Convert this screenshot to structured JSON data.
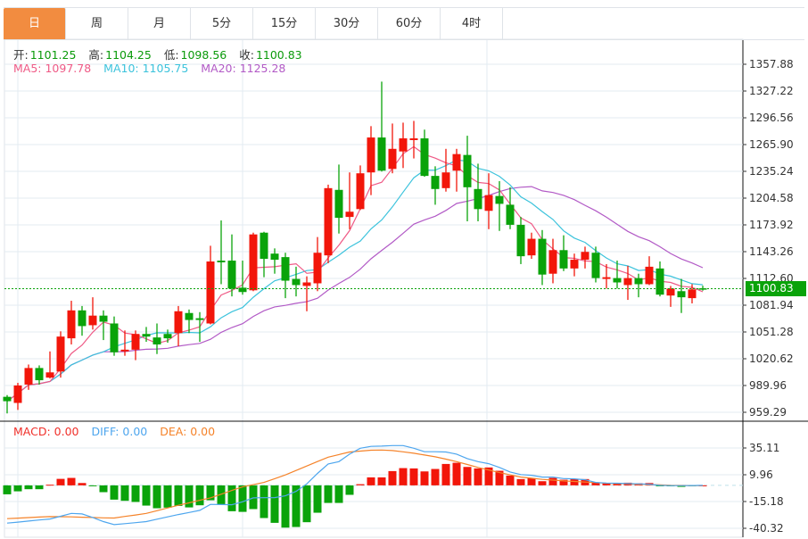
{
  "tabs": [
    {
      "label": "日",
      "active": true
    },
    {
      "label": "周"
    },
    {
      "label": "月"
    },
    {
      "label": "5分"
    },
    {
      "label": "15分"
    },
    {
      "label": "30分"
    },
    {
      "label": "60分"
    },
    {
      "label": "4时"
    }
  ],
  "ohlc_info": {
    "open_label": "开:",
    "open": "1101.25",
    "high_label": "高:",
    "high": "1104.25",
    "low_label": "低:",
    "low": "1098.56",
    "close_label": "收:",
    "close": "1100.83"
  },
  "ma_info": {
    "ma5": "MA5: 1097.78",
    "ma10": "MA10: 1105.75",
    "ma20": "MA20: 1125.28"
  },
  "macd_info": {
    "macd": "MACD: 0.00",
    "diff": "DIFF: 0.00",
    "dea": "DEA: 0.00"
  },
  "current_price": "1100.83",
  "colors": {
    "up": "#f2160a",
    "down": "#0aa30a",
    "ma5": "#ef5a86",
    "ma10": "#3cc3dc",
    "ma20": "#b25ac6",
    "diff": "#4ea6ee",
    "dea": "#f5832a",
    "tab_active": "#f28c40"
  },
  "chart_data": [
    {
      "type": "candlestick",
      "title": "",
      "ylim": [
        959.29,
        1357.88
      ],
      "y_ticks": [
        "1357.88",
        "1327.22",
        "1296.56",
        "1265.90",
        "1235.24",
        "1204.58",
        "1173.92",
        "1143.26",
        "1112.60",
        "1081.94",
        "1051.28",
        "1020.62",
        "989.96",
        "959.29"
      ],
      "ohlc": [
        [
          977,
          979,
          958,
          972
        ],
        [
          970,
          993,
          962,
          990
        ],
        [
          991,
          1014,
          985,
          1010
        ],
        [
          1010,
          1013,
          991,
          996
        ],
        [
          999,
          1029,
          998,
          1005
        ],
        [
          1006,
          1052,
          999,
          1046
        ],
        [
          1044,
          1087,
          1037,
          1076
        ],
        [
          1076,
          1081,
          1047,
          1058
        ],
        [
          1059,
          1091,
          1054,
          1070
        ],
        [
          1070,
          1076,
          1042,
          1063
        ],
        [
          1061,
          1069,
          1024,
          1028
        ],
        [
          1029,
          1053,
          1024,
          1031
        ],
        [
          1031,
          1053,
          1019,
          1049
        ],
        [
          1049,
          1057,
          1040,
          1046
        ],
        [
          1045,
          1061,
          1026,
          1037
        ],
        [
          1049,
          1054,
          1039,
          1044
        ],
        [
          1050,
          1081,
          1035,
          1075
        ],
        [
          1073,
          1077,
          1050,
          1065
        ],
        [
          1067,
          1074,
          1040,
          1065
        ],
        [
          1061,
          1150,
          1060,
          1132
        ],
        [
          1133,
          1179,
          1106,
          1131
        ],
        [
          1133,
          1163,
          1092,
          1101
        ],
        [
          1102,
          1133,
          1094,
          1097
        ],
        [
          1099,
          1165,
          1098,
          1163
        ],
        [
          1165,
          1166,
          1114,
          1135
        ],
        [
          1141,
          1147,
          1118,
          1134
        ],
        [
          1137,
          1142,
          1090,
          1110
        ],
        [
          1112,
          1126,
          1092,
          1105
        ],
        [
          1104,
          1115,
          1075,
          1108
        ],
        [
          1107,
          1160,
          1098,
          1142
        ],
        [
          1139,
          1220,
          1130,
          1216
        ],
        [
          1214,
          1243,
          1164,
          1182
        ],
        [
          1183,
          1234,
          1169,
          1189
        ],
        [
          1192,
          1242,
          1191,
          1233
        ],
        [
          1234,
          1287,
          1208,
          1274
        ],
        [
          1274,
          1338,
          1235,
          1236
        ],
        [
          1238,
          1290,
          1233,
          1261
        ],
        [
          1258,
          1291,
          1239,
          1273
        ],
        [
          1271,
          1293,
          1250,
          1273
        ],
        [
          1273,
          1283,
          1229,
          1230
        ],
        [
          1230,
          1241,
          1197,
          1215
        ],
        [
          1216,
          1261,
          1212,
          1234
        ],
        [
          1236,
          1261,
          1212,
          1255
        ],
        [
          1254,
          1276,
          1178,
          1217
        ],
        [
          1215,
          1244,
          1178,
          1192
        ],
        [
          1190,
          1233,
          1169,
          1208
        ],
        [
          1207,
          1224,
          1167,
          1198
        ],
        [
          1197,
          1217,
          1169,
          1174
        ],
        [
          1174,
          1183,
          1129,
          1138
        ],
        [
          1139,
          1165,
          1135,
          1158
        ],
        [
          1158,
          1168,
          1105,
          1117
        ],
        [
          1118,
          1158,
          1107,
          1145
        ],
        [
          1145,
          1162,
          1121,
          1124
        ],
        [
          1124,
          1141,
          1115,
          1134
        ],
        [
          1134,
          1149,
          1124,
          1143
        ],
        [
          1142,
          1149,
          1108,
          1113
        ],
        [
          1112,
          1129,
          1101,
          1114
        ],
        [
          1113,
          1133,
          1101,
          1108
        ],
        [
          1105,
          1127,
          1088,
          1113
        ],
        [
          1113,
          1118,
          1091,
          1106
        ],
        [
          1106,
          1138,
          1105,
          1126
        ],
        [
          1124,
          1132,
          1092,
          1094
        ],
        [
          1093,
          1104,
          1080,
          1101
        ],
        [
          1098,
          1112,
          1073,
          1091
        ],
        [
          1090,
          1106,
          1084,
          1100
        ],
        [
          1101.25,
          1104.25,
          1098.56,
          1100.83
        ]
      ],
      "moving_averages": [
        "MA5",
        "MA10",
        "MA20"
      ]
    },
    {
      "type": "bar",
      "title": "MACD",
      "ylim": [
        -45,
        45
      ],
      "y_ticks": [
        "35.11",
        "9.96",
        "-15.18",
        "-40.32"
      ],
      "macd_hist": [
        -8.4,
        -5.6,
        -3.6,
        -3.6,
        0.6,
        6.1,
        7.0,
        2.2,
        -0.6,
        -6.4,
        -13.4,
        -14.5,
        -15.6,
        -19.0,
        -21.5,
        -20.9,
        -19.3,
        -20.7,
        -18.7,
        -14.0,
        -18.2,
        -24.3,
        -24.9,
        -22.3,
        -30.7,
        -35.2,
        -39.7,
        -39.1,
        -34.6,
        -25.7,
        -16.5,
        -16.5,
        -8.9,
        1.1,
        7.5,
        7.5,
        13.4,
        16.2,
        15.9,
        13.1,
        15.4,
        20.1,
        21.2,
        17.3,
        15.9,
        16.8,
        13.7,
        9.2,
        5.9,
        6.7,
        3.9,
        7.0,
        5.3,
        6.1,
        5.9,
        2.5,
        2.2,
        2.0,
        2.5,
        2.0,
        2.2,
        -0.8,
        -0.3,
        -1.4,
        -0.3,
        0
      ],
      "diff": [
        -35.5,
        -34.5,
        -33.5,
        -32.5,
        -31.6,
        -29,
        -26.3,
        -26.8,
        -30.2,
        -34,
        -36.9,
        -36,
        -35,
        -34,
        -31.8,
        -29.6,
        -27.4,
        -25.5,
        -23.5,
        -17.9,
        -18,
        -18.2,
        -15.4,
        -11.7,
        -11.6,
        -11.5,
        -9.8,
        -5.6,
        1.4,
        11.2,
        20.1,
        22.3,
        29.3,
        34.9,
        36.6,
        36.9,
        37.4,
        37.4,
        34.9,
        31.6,
        31.6,
        31.3,
        29.3,
        25.1,
        22.3,
        20.4,
        16.8,
        12.6,
        10.1,
        9.5,
        7.8,
        7.8,
        6.4,
        6.1,
        5.3,
        2.8,
        2.2,
        2.0,
        1.7,
        1.4,
        1.1,
        0,
        -0.3,
        -0.3,
        -0.2,
        0.0
      ],
      "dea": [
        -31.3,
        -30.8,
        -30.3,
        -29.8,
        -29.3,
        -29.4,
        -29.6,
        -29.9,
        -30.2,
        -30.5,
        -30.7,
        -29.2,
        -27.8,
        -26.3,
        -23.8,
        -21.2,
        -18.7,
        -16.4,
        -14,
        -11.7,
        -8.3,
        -4.8,
        -1.4,
        0.7,
        2.8,
        6.3,
        9.8,
        14,
        18.2,
        22.4,
        26.5,
        28.9,
        31.3,
        32.2,
        33.0,
        33.2,
        32.7,
        31.5,
        30.2,
        28.5,
        26.8,
        24.6,
        22.3,
        19.6,
        16.8,
        14.4,
        12.0,
        9.9,
        7.8,
        6.7,
        5.6,
        4.9,
        4.2,
        3.7,
        3.1,
        2.6,
        2.0,
        1.7,
        1.4,
        1.1,
        0.8,
        0.4,
        0,
        -0.1,
        -0.2,
        -0.3
      ]
    }
  ]
}
